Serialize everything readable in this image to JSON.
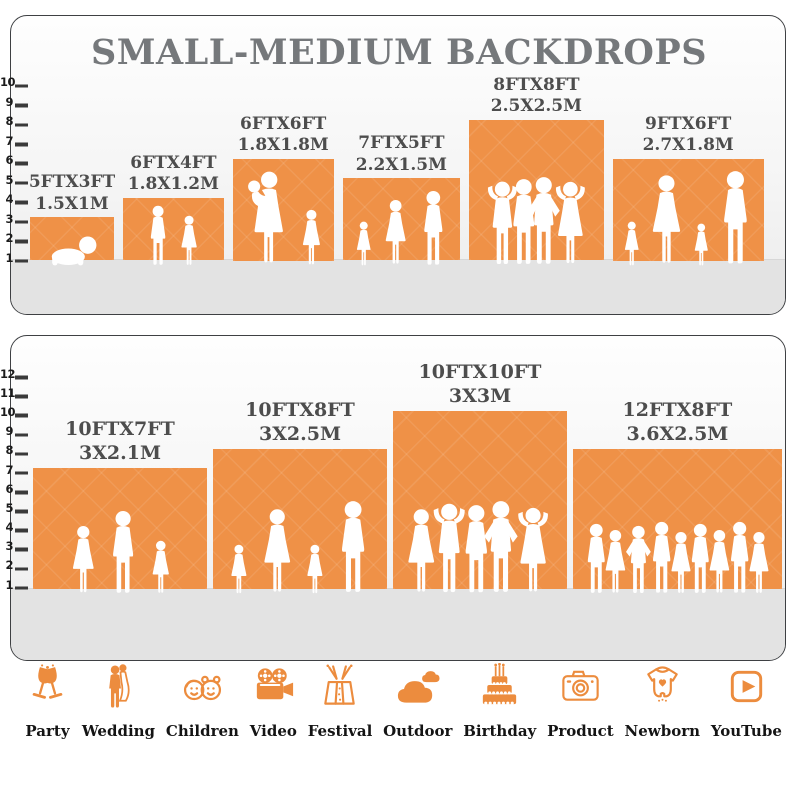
{
  "title": "SMALL-MEDIUM BACKDROPS",
  "colors": {
    "accent": "#EC8C3E",
    "bar_fill": "#EF9147",
    "title_text": "#75787B",
    "label_text": "#4D4D4D",
    "ruler_text": "#1B1B1B",
    "panel_border": "#3E4043",
    "figure_fill": "#FFFFFF"
  },
  "chart_data": [
    {
      "type": "bar",
      "name": "small-medium-backdrops",
      "title": "SMALL-MEDIUM BACKDROPS",
      "y_axis": {
        "unit": "ft",
        "ticks": [
          1,
          2,
          3,
          4,
          5,
          6,
          7,
          8,
          9,
          10
        ]
      },
      "bars": [
        {
          "size_ft": "5FTX3FT",
          "size_m": "1.5X1M",
          "width_ft": 5,
          "height_ft": 3,
          "figures": [
            {
              "type": "baby-crawl",
              "height_ft": 1.7
            }
          ]
        },
        {
          "size_ft": "6FTX4FT",
          "size_m": "1.8X1.2M",
          "width_ft": 6,
          "height_ft": 4,
          "figures": [
            {
              "type": "boy",
              "height_ft": 3.2
            },
            {
              "type": "girl",
              "height_ft": 2.7
            }
          ]
        },
        {
          "size_ft": "6FTX6FT",
          "size_m": "1.8X1.8M",
          "width_ft": 6,
          "height_ft": 6,
          "figures": [
            {
              "type": "mother-baby",
              "height_ft": 5.0
            },
            {
              "type": "girl",
              "height_ft": 3.0
            }
          ]
        },
        {
          "size_ft": "7FTX5FT",
          "size_m": "2.2X1.5M",
          "width_ft": 7,
          "height_ft": 5,
          "figures": [
            {
              "type": "girl",
              "height_ft": 2.4
            },
            {
              "type": "woman",
              "height_ft": 3.5
            },
            {
              "type": "man",
              "height_ft": 4.0
            }
          ]
        },
        {
          "size_ft": "8FTX8FT",
          "size_m": "2.5X2.5M",
          "width_ft": 8,
          "height_ft": 8,
          "figures": [
            {
              "type": "man-armsup",
              "height_ft": 4.5
            },
            {
              "type": "man",
              "height_ft": 4.6
            },
            {
              "type": "man-hips",
              "height_ft": 4.7
            },
            {
              "type": "woman-armsup",
              "height_ft": 4.5
            }
          ]
        },
        {
          "size_ft": "9FTX6FT",
          "size_m": "2.7X1.8M",
          "width_ft": 9,
          "height_ft": 6,
          "figures": [
            {
              "type": "girl",
              "height_ft": 2.4
            },
            {
              "type": "woman",
              "height_ft": 4.8
            },
            {
              "type": "girl",
              "height_ft": 2.3
            },
            {
              "type": "man",
              "height_ft": 5.0
            }
          ]
        }
      ]
    },
    {
      "type": "bar",
      "name": "large-backdrops",
      "y_axis": {
        "unit": "ft",
        "ticks": [
          1,
          2,
          3,
          4,
          5,
          6,
          7,
          8,
          9,
          10,
          11,
          12
        ]
      },
      "bars": [
        {
          "size_ft": "10FTX7FT",
          "size_m": "3X2.1M",
          "width_ft": 10,
          "height_ft": 7,
          "figures": [
            {
              "type": "woman",
              "height_ft": 3.7
            },
            {
              "type": "man",
              "height_ft": 4.5
            },
            {
              "type": "girl",
              "height_ft": 2.9
            }
          ]
        },
        {
          "size_ft": "10FTX8FT",
          "size_m": "3X2.5M",
          "width_ft": 10,
          "height_ft": 8,
          "figures": [
            {
              "type": "girl",
              "height_ft": 2.7
            },
            {
              "type": "woman",
              "height_ft": 4.6
            },
            {
              "type": "girl",
              "height_ft": 2.7
            },
            {
              "type": "man",
              "height_ft": 5.0
            }
          ]
        },
        {
          "size_ft": "10FTX10FT",
          "size_m": "3X3M",
          "width_ft": 10,
          "height_ft": 10,
          "figures": [
            {
              "type": "woman",
              "height_ft": 4.6
            },
            {
              "type": "man-armsup",
              "height_ft": 4.9
            },
            {
              "type": "man",
              "height_ft": 4.8
            },
            {
              "type": "man-hips",
              "height_ft": 5.0
            },
            {
              "type": "woman-armsup",
              "height_ft": 4.7
            }
          ]
        },
        {
          "size_ft": "12FTX8FT",
          "size_m": "3.6X2.5M",
          "width_ft": 12,
          "height_ft": 8,
          "figures": [
            {
              "type": "man",
              "height_ft": 3.8
            },
            {
              "type": "woman",
              "height_ft": 3.5
            },
            {
              "type": "man-hips",
              "height_ft": 3.7
            },
            {
              "type": "man",
              "height_ft": 3.9
            },
            {
              "type": "woman",
              "height_ft": 3.4
            },
            {
              "type": "man",
              "height_ft": 3.8
            },
            {
              "type": "woman",
              "height_ft": 3.5
            },
            {
              "type": "man",
              "height_ft": 3.9
            },
            {
              "type": "woman",
              "height_ft": 3.4
            }
          ]
        }
      ]
    }
  ],
  "categories": [
    {
      "label": "Party",
      "icon": "party-icon"
    },
    {
      "label": "Wedding",
      "icon": "wedding-icon"
    },
    {
      "label": "Children",
      "icon": "children-icon"
    },
    {
      "label": "Video",
      "icon": "video-icon"
    },
    {
      "label": "Festival",
      "icon": "festival-icon"
    },
    {
      "label": "Outdoor",
      "icon": "outdoor-icon"
    },
    {
      "label": "Birthday",
      "icon": "birthday-icon"
    },
    {
      "label": "Product",
      "icon": "product-icon"
    },
    {
      "label": "Newborn",
      "icon": "newborn-icon"
    },
    {
      "label": "YouTube",
      "icon": "youtube-icon"
    }
  ]
}
